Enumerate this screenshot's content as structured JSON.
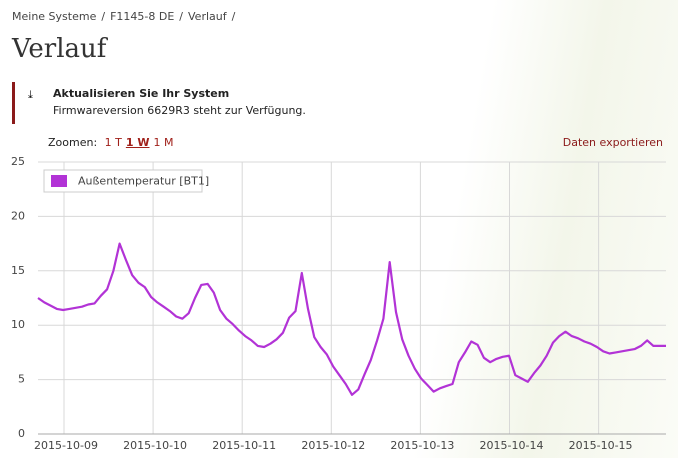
{
  "breadcrumb": [
    "Meine Systeme",
    "F1145-8 DE",
    "Verlauf"
  ],
  "title": "Verlauf",
  "notice": {
    "heading": "Aktualisieren Sie Ihr System",
    "text": "Firmwareversion 6629R3 steht zur Verfügung."
  },
  "zoom": {
    "label": "Zoomen:",
    "options": [
      "1 T",
      "1 W",
      "1 M"
    ],
    "active": 1
  },
  "export": "Daten exportieren",
  "chart_data": {
    "type": "line",
    "ylim": [
      0,
      25
    ],
    "yticks": [
      0,
      5,
      10,
      15,
      20,
      25
    ],
    "grid": true,
    "legend": "top-left",
    "xticks": [
      "2015-10-09",
      "2015-10-10",
      "2015-10-11",
      "2015-10-12",
      "2015-10-13",
      "2015-10-14",
      "2015-10-15"
    ],
    "series": [
      {
        "name": "Außentemperatur [BT1]",
        "color": "#b233d6",
        "values": [
          12.5,
          12.1,
          11.8,
          11.5,
          11.4,
          11.5,
          11.6,
          11.7,
          11.9,
          12.0,
          12.7,
          13.3,
          15.0,
          17.5,
          16.0,
          14.6,
          13.9,
          13.5,
          12.6,
          12.1,
          11.7,
          11.3,
          10.8,
          10.6,
          11.1,
          12.5,
          13.7,
          13.8,
          13.0,
          11.4,
          10.6,
          10.1,
          9.5,
          9.0,
          8.6,
          8.1,
          8.0,
          8.3,
          8.7,
          9.3,
          10.7,
          11.3,
          14.8,
          11.5,
          8.9,
          8.0,
          7.3,
          6.2,
          5.4,
          4.6,
          3.6,
          4.1,
          5.5,
          6.8,
          8.6,
          10.6,
          15.8,
          11.2,
          8.7,
          7.2,
          6.0,
          5.1,
          4.5,
          3.9,
          4.2,
          4.4,
          4.6,
          6.6,
          7.5,
          8.5,
          8.2,
          7.0,
          6.6,
          6.9,
          7.1,
          7.2,
          5.4,
          5.1,
          4.8,
          5.6,
          6.3,
          7.2,
          8.4,
          9.0,
          9.4,
          9.0,
          8.8,
          8.5,
          8.3,
          8.0,
          7.6,
          7.4,
          7.5,
          7.6,
          7.7,
          7.8,
          8.1,
          8.6,
          8.1,
          8.1,
          8.1
        ]
      }
    ]
  }
}
